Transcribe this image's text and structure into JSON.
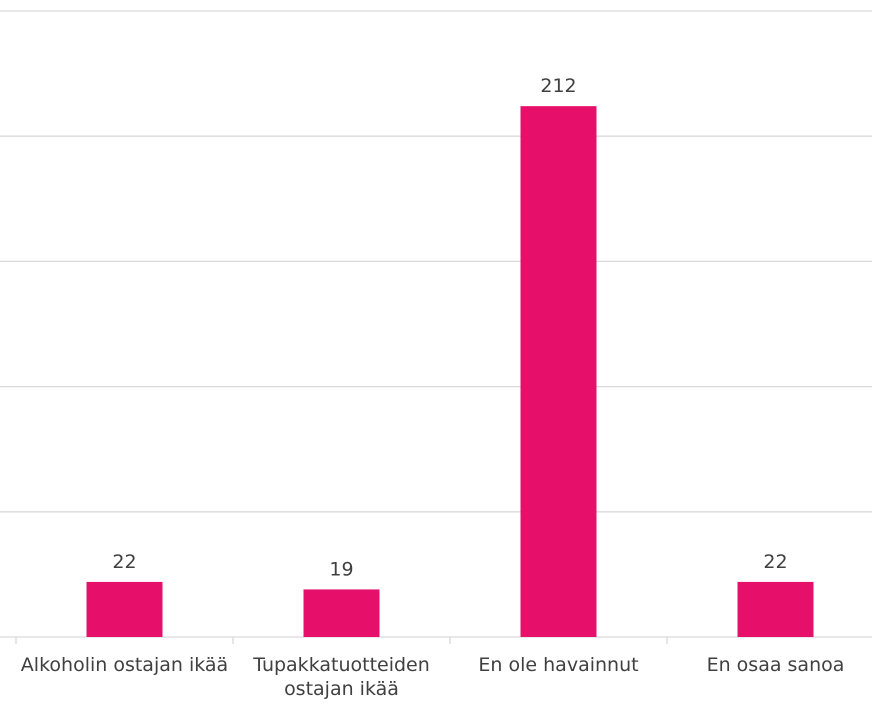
{
  "chart_data": {
    "type": "bar",
    "categories": [
      "Alkoholin ostajan ikää",
      "Tupakkatuotteiden ostajan ikää",
      "En ole havainnut",
      "En osaa sanoa"
    ],
    "values": [
      22,
      19,
      212,
      22
    ],
    "color": "#e6106a",
    "ylim": [
      0,
      250
    ],
    "yticks": [
      0,
      50,
      100,
      150,
      200,
      250
    ],
    "grid": true
  }
}
